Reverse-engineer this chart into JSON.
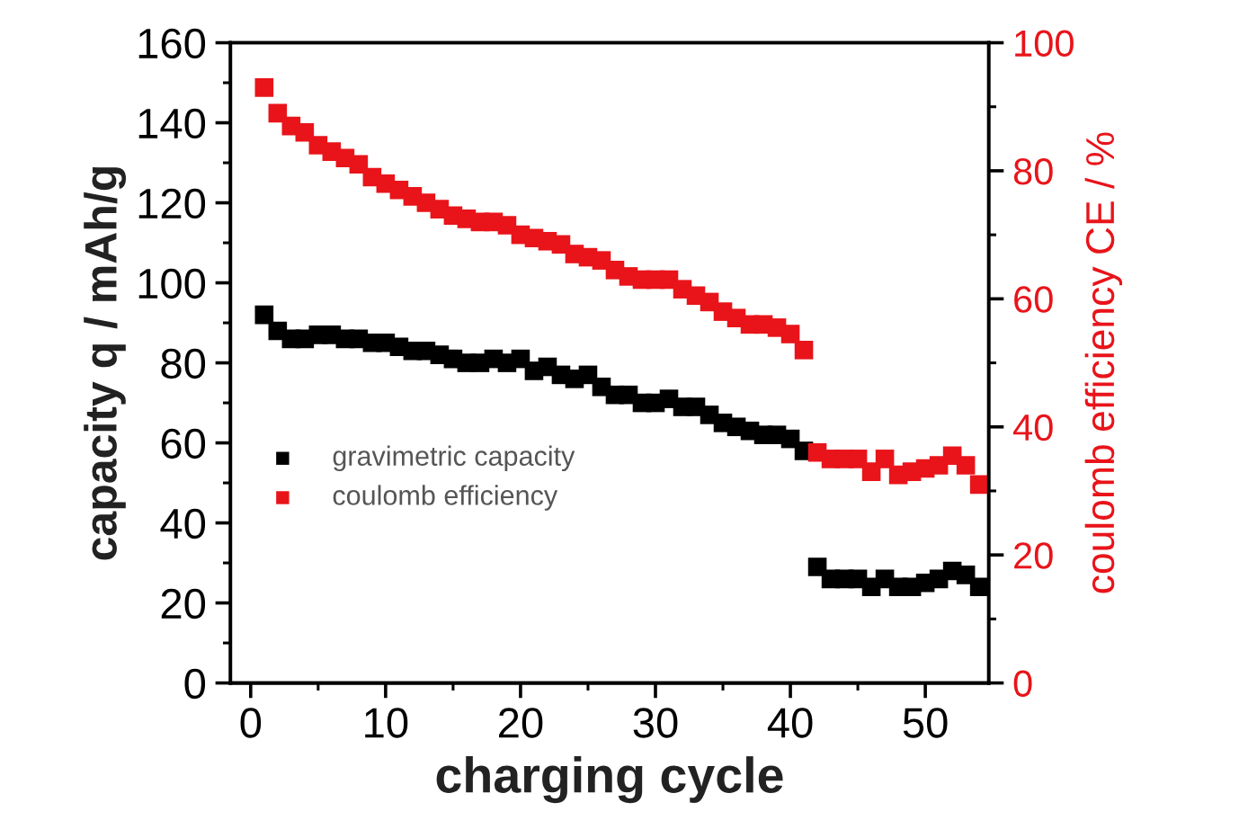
{
  "chart_data": {
    "type": "scatter",
    "xlabel": "charging cycle",
    "ylabel": "capacity q / mAh/g",
    "y2label": "coulomb efficiency CE / %",
    "x": [
      1,
      2,
      3,
      4,
      5,
      6,
      7,
      8,
      9,
      10,
      11,
      12,
      13,
      14,
      15,
      16,
      17,
      18,
      19,
      20,
      21,
      22,
      23,
      24,
      25,
      26,
      27,
      28,
      29,
      30,
      31,
      32,
      33,
      34,
      35,
      36,
      37,
      38,
      39,
      40,
      41,
      42,
      43,
      44,
      45,
      46,
      47,
      48,
      49,
      50,
      51,
      52,
      53,
      54
    ],
    "series": [
      {
        "name": "gravimetric capacity",
        "color": "#000000",
        "values": [
          92,
          88,
          86,
          86,
          87,
          87,
          86,
          86,
          85,
          85,
          84,
          83,
          83,
          82,
          81,
          80,
          80,
          81,
          80,
          81,
          78,
          79,
          77,
          76,
          77,
          74,
          72,
          72,
          70,
          70,
          71,
          69,
          69,
          67,
          65,
          64,
          63,
          62,
          62,
          61,
          58,
          29,
          26,
          26,
          26,
          24,
          26,
          24,
          24,
          25,
          26,
          28,
          27,
          24
        ]
      },
      {
        "name": "coulomb efficiency",
        "color": "#e8141a",
        "axis": "y2",
        "values": [
          93,
          89,
          87,
          86,
          84,
          83,
          82,
          81,
          79,
          78,
          77,
          76,
          75,
          74,
          73,
          72.5,
          72,
          72,
          71.5,
          70,
          69.5,
          69,
          68.5,
          67,
          66.5,
          66,
          64.5,
          63.5,
          63,
          63,
          63,
          61.5,
          60.5,
          59.5,
          58,
          57,
          56,
          56,
          55.5,
          54.5,
          52,
          36,
          35,
          35,
          35,
          33,
          35,
          32.5,
          33,
          33.5,
          34,
          35.5,
          34,
          31
        ]
      }
    ],
    "xlim": [
      -1.5,
      54.7
    ],
    "xticks": [
      0,
      10,
      20,
      30,
      40,
      50
    ],
    "ylim": [
      0,
      160
    ],
    "yticks": [
      0,
      20,
      40,
      60,
      80,
      100,
      120,
      140,
      160
    ],
    "y2lim": [
      0,
      100
    ],
    "y2ticks": [
      0,
      20,
      40,
      60,
      80,
      100
    ],
    "marker": "square",
    "legend": "left",
    "grid": false
  }
}
